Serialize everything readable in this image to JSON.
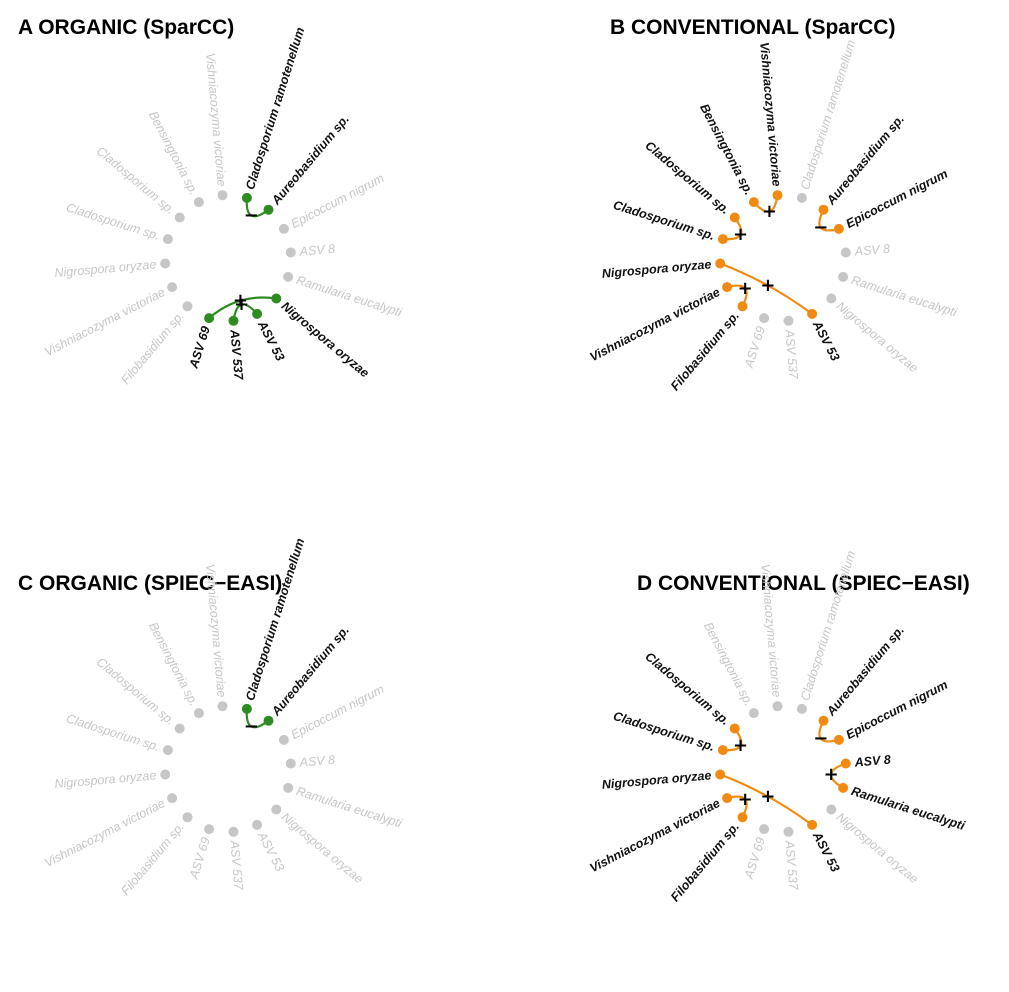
{
  "colors": {
    "organic": "#2e8b22",
    "conventional": "#f28a12",
    "inactive": "#c6c6c6",
    "text_active": "#111111",
    "text_inactive": "#c6c6c6"
  },
  "panels": [
    {
      "letter": "A",
      "title": "A ORGANIC (SparCC)",
      "group": "organic",
      "nodes": [
        {
          "label": "Cladosporium ramotenellum",
          "active": true
        },
        {
          "label": "Aureobasidium sp.",
          "active": true
        },
        {
          "label": "Epicoccum nigrum",
          "active": false
        },
        {
          "label": "ASV 8",
          "active": false
        },
        {
          "label": "Ramularia eucalypti",
          "active": false
        },
        {
          "label": "Nigrospora oryzae",
          "active": true
        },
        {
          "label": "ASV 53",
          "active": true
        },
        {
          "label": "ASV 537",
          "active": true
        },
        {
          "label": "ASV 69",
          "active": true
        },
        {
          "label": "Filobasidium sp.",
          "active": false
        },
        {
          "label": "Vishniacozyma victoriae",
          "active": false
        },
        {
          "label": "Nigrospora oryzae",
          "active": false
        },
        {
          "label": "Cladosporium sp.",
          "active": false
        },
        {
          "label": "Cladosporium sp.",
          "active": false
        },
        {
          "label": "Bensingtonia sp.",
          "active": false
        },
        {
          "label": "Vishniacozyma victoriae",
          "active": false
        }
      ],
      "edges": [
        {
          "from": 0,
          "to": 1,
          "sign": "−"
        },
        {
          "from": 8,
          "to": 5,
          "sign": "+"
        },
        {
          "from": 7,
          "to": 6,
          "sign": "+"
        }
      ]
    },
    {
      "letter": "B",
      "title": "B CONVENTIONAL (SparCC)",
      "group": "conventional",
      "nodes": [
        {
          "label": "Cladosporium ramotenellum",
          "active": false
        },
        {
          "label": "Aureobasidium sp.",
          "active": true
        },
        {
          "label": "Epicoccum nigrum",
          "active": true
        },
        {
          "label": "ASV 8",
          "active": false
        },
        {
          "label": "Ramularia eucalypti",
          "active": false
        },
        {
          "label": "Nigrospora oryzae",
          "active": false
        },
        {
          "label": "ASV 53",
          "active": true
        },
        {
          "label": "ASV 537",
          "active": false
        },
        {
          "label": "ASV 69",
          "active": false
        },
        {
          "label": "Filobasidium sp.",
          "active": true
        },
        {
          "label": "Vishniacozyma victoriae",
          "active": true
        },
        {
          "label": "Nigrospora oryzae",
          "active": true
        },
        {
          "label": "Cladosporium sp.",
          "active": true
        },
        {
          "label": "Cladosporium sp.",
          "active": true
        },
        {
          "label": "Bensingtonia sp.",
          "active": true
        },
        {
          "label": "Vishniacozyma victoriae",
          "active": true
        }
      ],
      "edges": [
        {
          "from": 14,
          "to": 15,
          "sign": "+"
        },
        {
          "from": 12,
          "to": 13,
          "sign": "+"
        },
        {
          "from": 1,
          "to": 2,
          "sign": "−"
        },
        {
          "from": 11,
          "to": 6,
          "sign": "+"
        },
        {
          "from": 10,
          "to": 9,
          "sign": "+"
        }
      ]
    },
    {
      "letter": "C",
      "title": "C ORGANIC (SPIEC−EASI)",
      "group": "organic",
      "nodes": [
        {
          "label": "Cladosporium ramotenellum",
          "active": true
        },
        {
          "label": "Aureobasidium sp.",
          "active": true
        },
        {
          "label": "Epicoccum nigrum",
          "active": false
        },
        {
          "label": "ASV 8",
          "active": false
        },
        {
          "label": "Ramularia eucalypti",
          "active": false
        },
        {
          "label": "Nigrospora oryzae",
          "active": false
        },
        {
          "label": "ASV 53",
          "active": false
        },
        {
          "label": "ASV 537",
          "active": false
        },
        {
          "label": "ASV 69",
          "active": false
        },
        {
          "label": "Filobasidium sp.",
          "active": false
        },
        {
          "label": "Vishniacozyma victoriae",
          "active": false
        },
        {
          "label": "Nigrospora oryzae",
          "active": false
        },
        {
          "label": "Cladosporium sp.",
          "active": false
        },
        {
          "label": "Cladosporium sp.",
          "active": false
        },
        {
          "label": "Bensingtonia sp.",
          "active": false
        },
        {
          "label": "Vishniacozyma victoriae",
          "active": false
        }
      ],
      "edges": [
        {
          "from": 0,
          "to": 1,
          "sign": "−"
        }
      ]
    },
    {
      "letter": "D",
      "title": "D CONVENTIONAL (SPIEC−EASI)",
      "group": "conventional",
      "nodes": [
        {
          "label": "Cladosporium ramotenellum",
          "active": false
        },
        {
          "label": "Aureobasidium sp.",
          "active": true
        },
        {
          "label": "Epicoccum nigrum",
          "active": true
        },
        {
          "label": "ASV 8",
          "active": true
        },
        {
          "label": "Ramularia eucalypti",
          "active": true
        },
        {
          "label": "Nigrospora oryzae",
          "active": false
        },
        {
          "label": "ASV 53",
          "active": true
        },
        {
          "label": "ASV 537",
          "active": false
        },
        {
          "label": "ASV 69",
          "active": false
        },
        {
          "label": "Filobasidium sp.",
          "active": true
        },
        {
          "label": "Vishniacozyma victoriae",
          "active": true
        },
        {
          "label": "Nigrospora oryzae",
          "active": true
        },
        {
          "label": "Cladosporium sp.",
          "active": true
        },
        {
          "label": "Cladosporium sp.",
          "active": true
        },
        {
          "label": "Bensingtonia sp.",
          "active": false
        },
        {
          "label": "Vishniacozyma victoriae",
          "active": false
        }
      ],
      "edges": [
        {
          "from": 12,
          "to": 13,
          "sign": "+"
        },
        {
          "from": 1,
          "to": 2,
          "sign": "−"
        },
        {
          "from": 11,
          "to": 6,
          "sign": "+"
        },
        {
          "from": 10,
          "to": 9,
          "sign": "+"
        },
        {
          "from": 3,
          "to": 4,
          "sign": "+"
        }
      ]
    }
  ]
}
